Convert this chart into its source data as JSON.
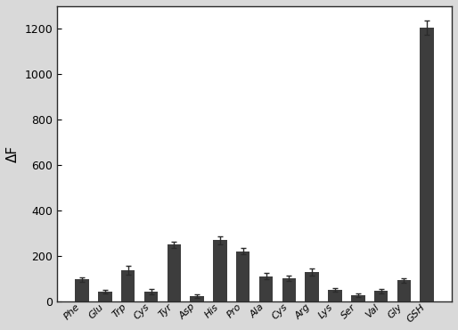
{
  "categories": [
    "Phe",
    "Glu",
    "Trp",
    "Cys",
    "Tyr",
    "Asp",
    "His",
    "Pro",
    "Ala",
    "Cys",
    "Arg",
    "Lys",
    "Ser",
    "Val",
    "Gly",
    "GSH"
  ],
  "values": [
    95,
    42,
    135,
    40,
    248,
    20,
    268,
    220,
    110,
    100,
    128,
    48,
    25,
    45,
    92,
    1205
  ],
  "errors": [
    10,
    8,
    20,
    12,
    12,
    8,
    18,
    15,
    15,
    12,
    15,
    8,
    8,
    10,
    10,
    30
  ],
  "bar_color": "#3d3d3d",
  "ylabel": "ΔF",
  "ylim": [
    0,
    1300
  ],
  "yticks": [
    0,
    200,
    400,
    600,
    800,
    1000,
    1200
  ],
  "fig_bg_color": "#d9d9d9",
  "plot_bg_color": "#ffffff",
  "ecolor": "#2a2a2a",
  "capsize": 2,
  "bar_width": 0.6,
  "figsize": [
    5.14,
    3.7
  ],
  "dpi": 100
}
